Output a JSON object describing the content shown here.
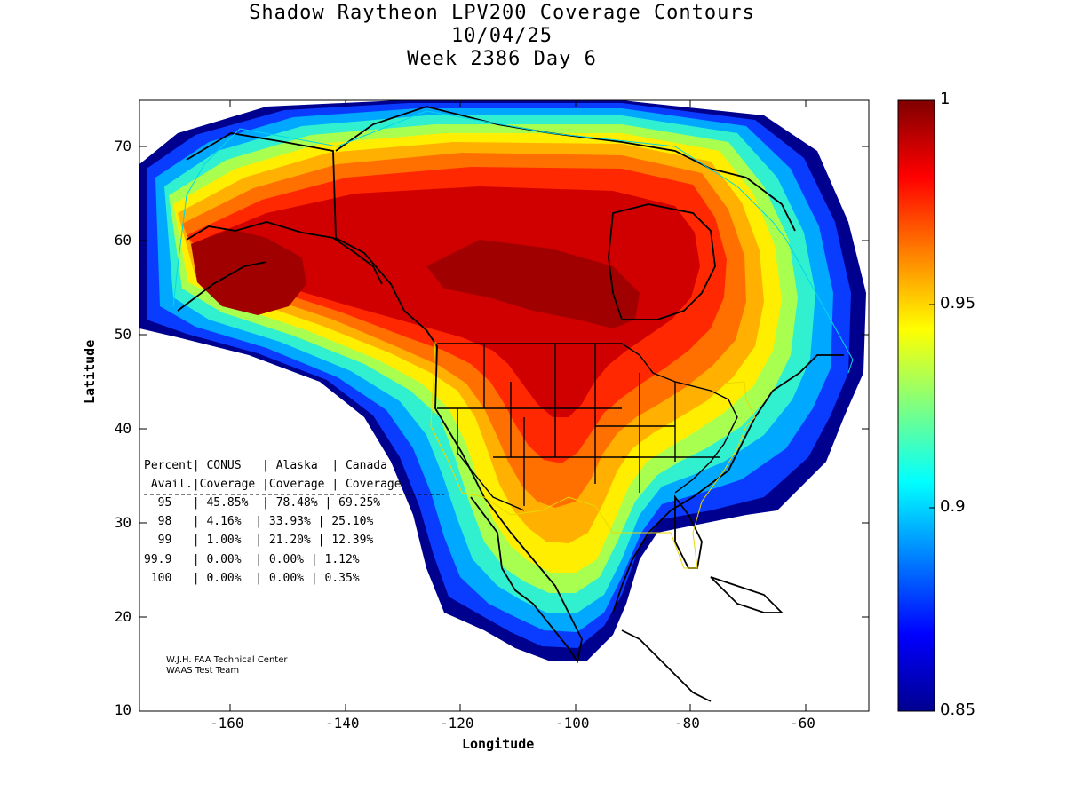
{
  "title": {
    "line1": "Shadow Raytheon LPV200 Coverage Contours",
    "line2": "10/04/25",
    "line3": "Week 2386 Day 6"
  },
  "axes": {
    "xlabel": "Longitude",
    "ylabel": "Latitude",
    "xticks": [
      "-160",
      "-140",
      "-120",
      "-100",
      "-80",
      "-60"
    ],
    "yticks": [
      "70",
      "60",
      "50",
      "40",
      "30",
      "20",
      "10"
    ],
    "xlim": [
      -175,
      -48
    ],
    "ylim": [
      10,
      75
    ]
  },
  "colorbar": {
    "ticks": [
      "1",
      "0.95",
      "0.9",
      "0.85"
    ],
    "range": [
      0.85,
      1
    ],
    "colormap": "jet"
  },
  "table": {
    "header1": "Percent| CONUS   | Alaska  | Canada",
    "header2": " Avail.|Coverage |Coverage | Coverage",
    "rows": [
      "  95   | 45.85%  | 78.48% | 69.25%",
      "  98   | 4.16%  | 33.93% | 25.10%",
      "  99   | 1.00%  | 21.20% | 12.39%",
      "99.9   | 0.00%  | 0.00% | 1.12%",
      " 100   | 0.00%  | 0.00% | 0.35%"
    ]
  },
  "credit": {
    "line1": "W.J.H. FAA Technical Center",
    "line2": "WAAS Test Team"
  },
  "chart_data": {
    "type": "heatmap",
    "title": "Shadow Raytheon LPV200 Coverage Contours",
    "xlabel": "Longitude",
    "ylabel": "Latitude",
    "xlim": [
      -175,
      -48
    ],
    "ylim": [
      10,
      75
    ],
    "colorbar_range": [
      0.85,
      1
    ],
    "coverage": [
      {
        "region": "CONUS",
        "avail_95": "45.85%",
        "avail_98": "4.16%",
        "avail_99": "1.00%",
        "avail_99_9": "0.00%",
        "avail_100": "0.00%"
      },
      {
        "region": "Alaska",
        "avail_95": "78.48%",
        "avail_98": "33.93%",
        "avail_99": "21.20%",
        "avail_99_9": "0.00%",
        "avail_100": "0.00%"
      },
      {
        "region": "Canada",
        "avail_95": "69.25%",
        "avail_98": "25.10%",
        "avail_99": "12.39%",
        "avail_99_9": "1.12%",
        "avail_100": "0.35%"
      }
    ]
  }
}
